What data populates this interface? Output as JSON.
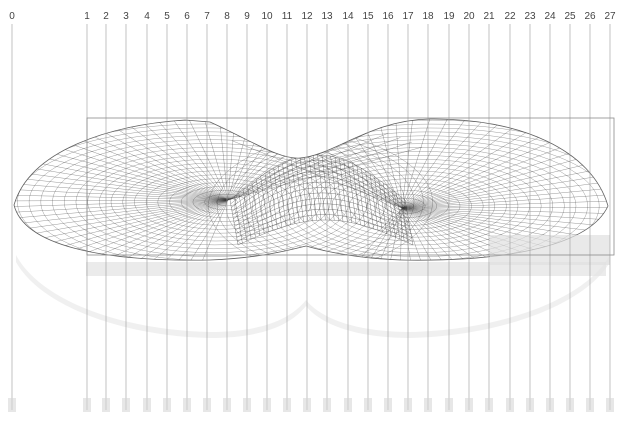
{
  "diagram": {
    "station_numbers": [
      "0",
      "1",
      "2",
      "3",
      "4",
      "5",
      "6",
      "7",
      "8",
      "9",
      "10",
      "11",
      "12",
      "13",
      "14",
      "15",
      "16",
      "17",
      "18",
      "19",
      "20",
      "21",
      "22",
      "23",
      "24",
      "25",
      "26",
      "27"
    ],
    "colors": {
      "mesh": "#3a3a3a",
      "station_line": "#9a9a9a",
      "frame": "#8a8a8a",
      "label": "#444444",
      "background": "#ffffff"
    }
  }
}
